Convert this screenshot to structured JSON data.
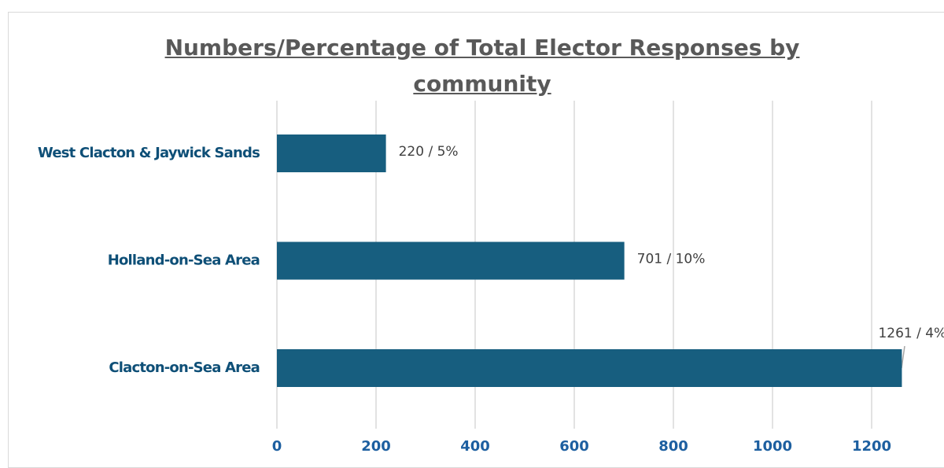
{
  "chart_data": {
    "type": "hbar",
    "title": "Numbers/Percentage of Total Elector Responses by community",
    "categories": [
      "West Clacton & Jaywick Sands",
      "Holland-on-Sea Area",
      "Clacton-on-Sea Area"
    ],
    "values": [
      220,
      701,
      1261
    ],
    "value_labels": [
      "220  / 5%",
      "701 / 10%",
      "1261 / 4%"
    ],
    "color": "#175e7f",
    "xlim": [
      0,
      1346
    ],
    "xticks": [
      0,
      200,
      400,
      600,
      800,
      1000,
      1200
    ],
    "grid": true
  }
}
